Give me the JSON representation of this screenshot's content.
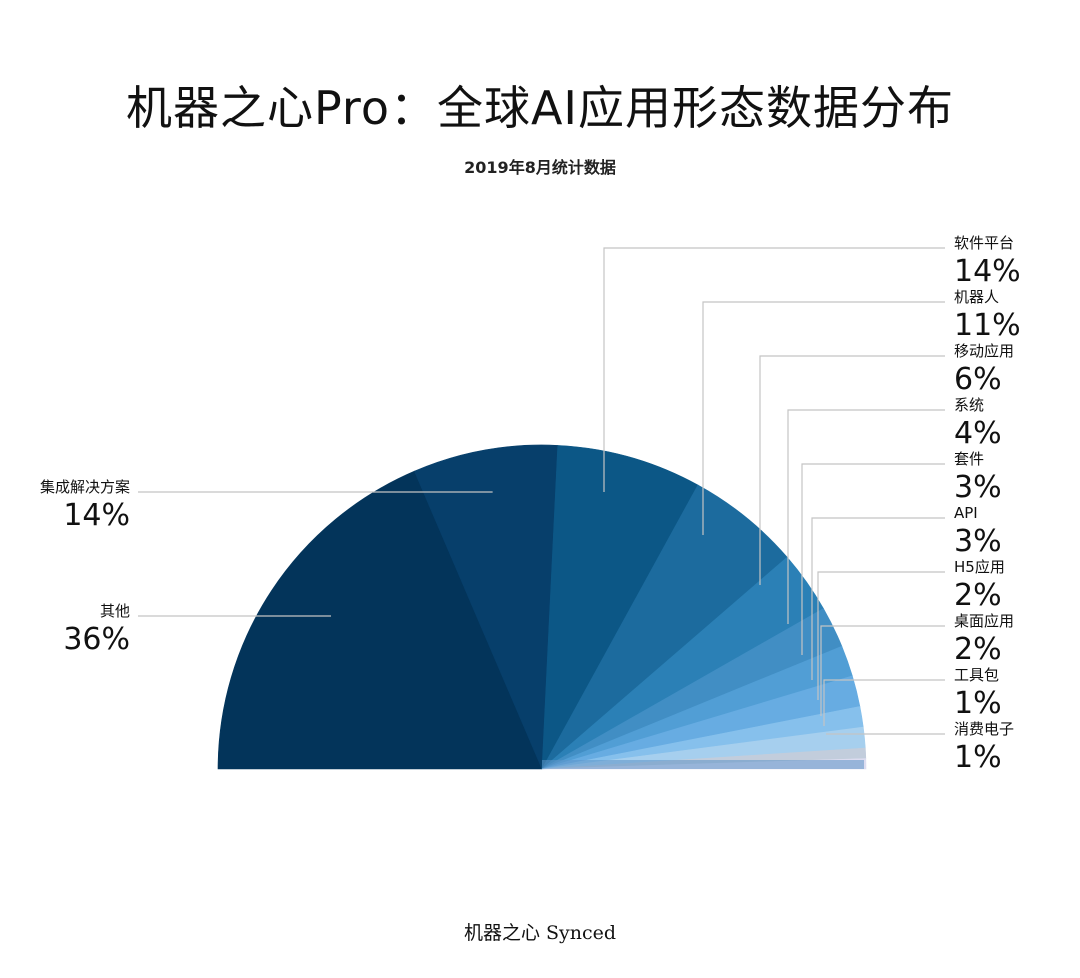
{
  "header": {
    "title": "机器之心Pro：全球AI应用形态数据分布",
    "subtitle": "2019年8月统计数据"
  },
  "footer": {
    "source": "机器之心 Synced"
  },
  "chart_data": {
    "type": "pie",
    "style": "half-pie",
    "title": "机器之心Pro：全球AI应用形态数据分布",
    "subtitle": "2019年8月统计数据",
    "slices": [
      {
        "name": "其他",
        "value": 36,
        "label": "36%",
        "color": "#03345a",
        "side": "left"
      },
      {
        "name": "集成解决方案",
        "value": 14,
        "label": "14%",
        "color": "#073f6b",
        "side": "left"
      },
      {
        "name": "软件平台",
        "value": 14,
        "label": "14%",
        "color": "#0c5786",
        "side": "right"
      },
      {
        "name": "机器人",
        "value": 11,
        "label": "11%",
        "color": "#1c6b9e",
        "side": "right"
      },
      {
        "name": "移动应用",
        "value": 6,
        "label": "6%",
        "color": "#2b80b6",
        "side": "right"
      },
      {
        "name": "系统",
        "value": 4,
        "label": "4%",
        "color": "#418ec4",
        "side": "right"
      },
      {
        "name": "套件",
        "value": 3,
        "label": "3%",
        "color": "#519ed5",
        "side": "right"
      },
      {
        "name": "API",
        "value": 3,
        "label": "3%",
        "color": "#67ace2",
        "side": "right"
      },
      {
        "name": "H5应用",
        "value": 2,
        "label": "2%",
        "color": "#86c0ec",
        "side": "right"
      },
      {
        "name": "桌面应用",
        "value": 2,
        "label": "2%",
        "color": "#a6cfee",
        "side": "right"
      },
      {
        "name": "工具包",
        "value": 1,
        "label": "1%",
        "color": "#c2cddc",
        "side": "right"
      },
      {
        "name": "消费电子",
        "value": 1,
        "label": "1%",
        "color": "#dcdcf0",
        "side": "right"
      }
    ]
  }
}
